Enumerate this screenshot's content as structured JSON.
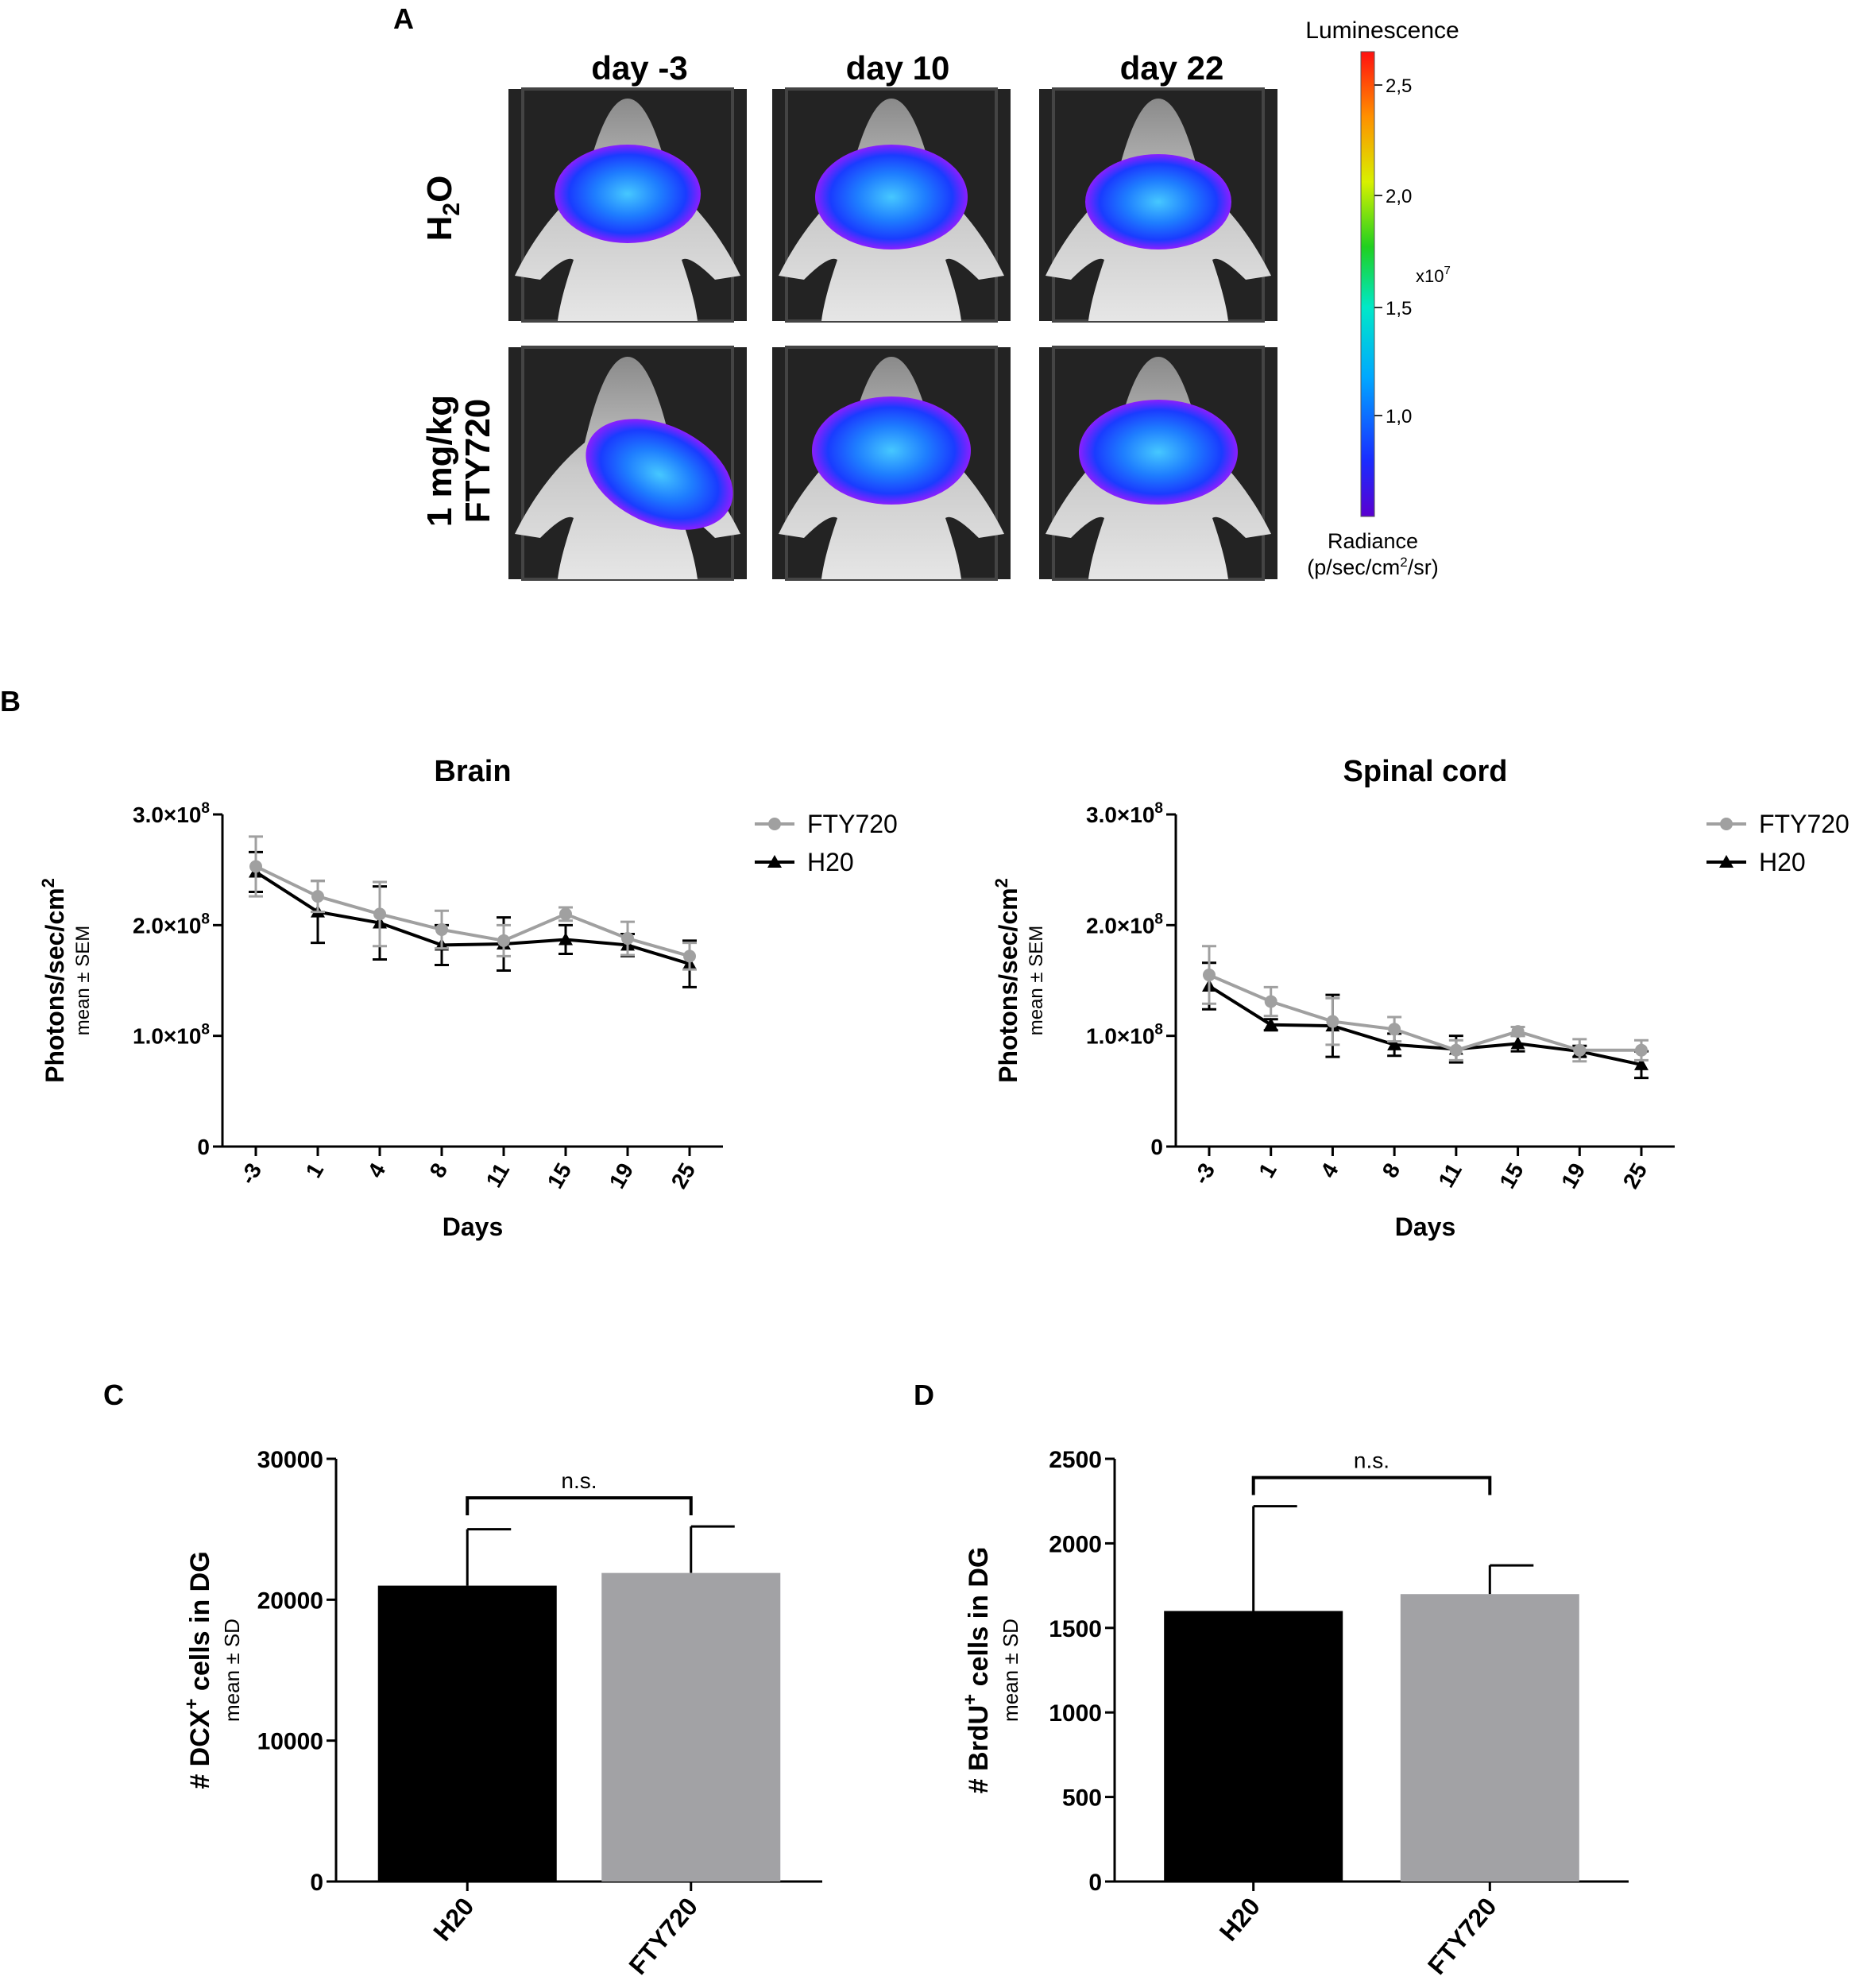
{
  "figure": {
    "panel_labels": {
      "a": "A",
      "b": "B",
      "c": "C",
      "d": "D"
    }
  },
  "panel_a": {
    "columns": [
      "day -3",
      "day 10",
      "day 22"
    ],
    "rows": [
      {
        "main": "H",
        "sub": "2",
        "suffix": "O"
      },
      {
        "line1": "1 mg/kg",
        "line2": "FTY720"
      }
    ],
    "colorbar": {
      "title": "Luminescence",
      "ticks": [
        "2,5",
        "2,0",
        "1,5",
        "1,0"
      ],
      "multiplier": "x10",
      "multiplier_exp": "7",
      "radiance_line1": "Radiance",
      "radiance_line2_pre": "(p/sec/cm",
      "radiance_line2_sup": "2",
      "radiance_line2_post": "/sr)"
    }
  },
  "chart_data": [
    {
      "id": "brain",
      "type": "line",
      "title": "Brain",
      "xlabel": "Days",
      "ylabel": "Photons/sec/cm",
      "ylabel_sup": "2",
      "ylabel_sub": "mean ± SEM",
      "ylim": [
        0,
        300000000
      ],
      "x": [
        "-3",
        "1",
        "4",
        "8",
        "11",
        "15",
        "19",
        "25"
      ],
      "yticks": [
        {
          "value": 0,
          "label": "0"
        },
        {
          "value": 100000000,
          "label": "1.0×10",
          "exp": "8"
        },
        {
          "value": 200000000,
          "label": "2.0×10",
          "exp": "8"
        },
        {
          "value": 300000000,
          "label": "3.0×10",
          "exp": "8"
        }
      ],
      "series": [
        {
          "name": "FTY720",
          "color": "#a0a0a0",
          "marker": "circle",
          "values": [
            253000000,
            226000000,
            210000000,
            196000000,
            186000000,
            210000000,
            188000000,
            172000000
          ],
          "errors": [
            27000000,
            14000000,
            29000000,
            17000000,
            14000000,
            6000000,
            15000000,
            12000000
          ]
        },
        {
          "name": "H20",
          "color": "#000000",
          "marker": "triangle",
          "values": [
            248000000,
            212000000,
            202000000,
            182000000,
            183000000,
            187000000,
            182000000,
            165000000
          ],
          "errors": [
            18000000,
            28000000,
            33000000,
            18000000,
            24000000,
            13000000,
            10000000,
            21000000
          ]
        }
      ]
    },
    {
      "id": "spinal",
      "type": "line",
      "title": "Spinal cord",
      "xlabel": "Days",
      "ylabel": "Photons/sec/cm",
      "ylabel_sup": "2",
      "ylabel_sub": "mean ± SEM",
      "ylim": [
        0,
        300000000
      ],
      "x": [
        "-3",
        "1",
        "4",
        "8",
        "11",
        "15",
        "19",
        "25"
      ],
      "yticks": [
        {
          "value": 0,
          "label": "0"
        },
        {
          "value": 100000000,
          "label": "1.0×10",
          "exp": "8"
        },
        {
          "value": 200000000,
          "label": "2.0×10",
          "exp": "8"
        },
        {
          "value": 300000000,
          "label": "3.0×10",
          "exp": "8"
        }
      ],
      "series": [
        {
          "name": "FTY720",
          "color": "#a0a0a0",
          "marker": "circle",
          "values": [
            155000000,
            131000000,
            113000000,
            106000000,
            87000000,
            104000000,
            87000000,
            87000000
          ],
          "errors": [
            26000000,
            13000000,
            21000000,
            11000000,
            9000000,
            4000000,
            10000000,
            9000000
          ]
        },
        {
          "name": "H20",
          "color": "#000000",
          "marker": "triangle",
          "values": [
            145000000,
            110000000,
            109000000,
            92000000,
            88000000,
            93000000,
            86000000,
            74000000
          ],
          "errors": [
            21000000,
            5000000,
            28000000,
            10000000,
            12000000,
            7000000,
            5000000,
            12000000
          ]
        }
      ]
    },
    {
      "id": "dcx",
      "type": "bar",
      "ylabel_pre": "# DCX",
      "ylabel_sup": "+",
      "ylabel_post": " cells in DG",
      "ylabel_sub": "mean ± SD",
      "ylim": [
        0,
        30000
      ],
      "yticks": [
        0,
        10000,
        20000,
        30000
      ],
      "categories": [
        "H20",
        "FTY720"
      ],
      "values": [
        21000,
        21900
      ],
      "errors": [
        4000,
        3300
      ],
      "colors": [
        "#000000",
        "#a2a2a5"
      ],
      "significance": "n.s."
    },
    {
      "id": "brdu",
      "type": "bar",
      "ylabel_pre": "# BrdU",
      "ylabel_sup": "+",
      "ylabel_post": " cells in DG",
      "ylabel_sub": "mean ± SD",
      "ylim": [
        0,
        2500
      ],
      "yticks": [
        0,
        500,
        1000,
        1500,
        2000,
        2500
      ],
      "categories": [
        "H20",
        "FTY720"
      ],
      "values": [
        1600,
        1700
      ],
      "errors": [
        620,
        170
      ],
      "colors": [
        "#000000",
        "#a2a2a5"
      ],
      "significance": "n.s."
    }
  ]
}
